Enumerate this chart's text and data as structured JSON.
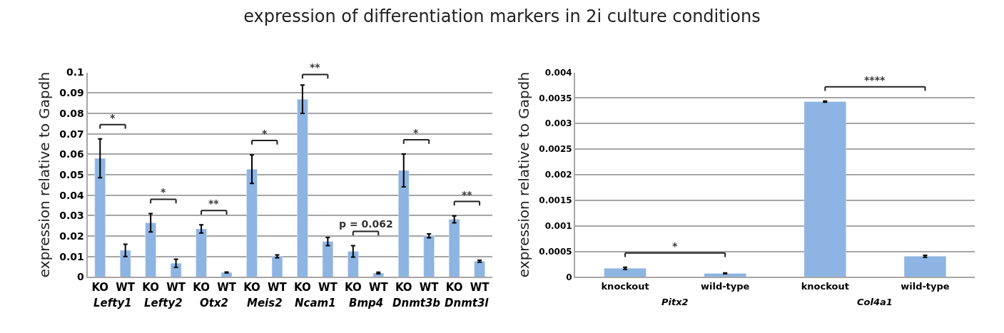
{
  "chart_data": [
    {
      "type": "bar",
      "title": "expression of differentiation markers in 2i culture conditions",
      "ylabel": "expression relative to Gapdh",
      "categories": [
        "KO",
        "WT",
        "KO",
        "WT",
        "KO",
        "WT",
        "KO",
        "WT",
        "KO",
        "WT",
        "KO",
        "WT",
        "KO",
        "WT",
        "KO",
        "WT"
      ],
      "values": [
        0.058,
        0.013,
        0.0265,
        0.0067,
        0.0235,
        0.0022,
        0.0527,
        0.0101,
        0.0869,
        0.0173,
        0.0125,
        0.0019,
        0.0521,
        0.0201,
        0.0282,
        0.0077
      ],
      "errors": [
        0.0095,
        0.003,
        0.0045,
        0.002,
        0.002,
        0.0002,
        0.007,
        0.0007,
        0.0069,
        0.002,
        0.0028,
        0.0004,
        0.008,
        0.001,
        0.0017,
        0.0005
      ],
      "color": "#8db4e2",
      "ylim": [
        0,
        0.1
      ],
      "yticks": [
        0,
        0.01,
        0.02,
        0.03,
        0.04,
        0.05,
        0.06,
        0.07,
        0.08,
        0.09,
        0.1
      ],
      "grid": "y",
      "annotations": [
        "Lefty1",
        "Lefty2",
        "Otx2",
        "Meis2",
        "Ncam1",
        "Bmp4",
        "Dnmt3b",
        "Dnmt3l",
        "*",
        "*",
        "**",
        "*",
        "**",
        "p = 0.062",
        "*",
        "**"
      ]
    },
    {
      "type": "bar",
      "ylabel": "expression relative to Gapdh",
      "categories": [
        "knockout",
        "wild-type",
        "knockout",
        "wild-type"
      ],
      "values": [
        0.00017,
        7e-05,
        0.00343,
        0.000405
      ],
      "errors": [
        2e-05,
        1e-05,
        1e-05,
        2e-05
      ],
      "color": "#8db4e2",
      "ylim": [
        0,
        0.004
      ],
      "yticks": [
        0,
        0.0005,
        0.001,
        0.0015,
        0.002,
        0.0025,
        0.003,
        0.0035,
        0.004
      ],
      "grid": "y",
      "annotations": [
        "Pitx2",
        "Col4a1",
        "*",
        "****"
      ]
    }
  ]
}
